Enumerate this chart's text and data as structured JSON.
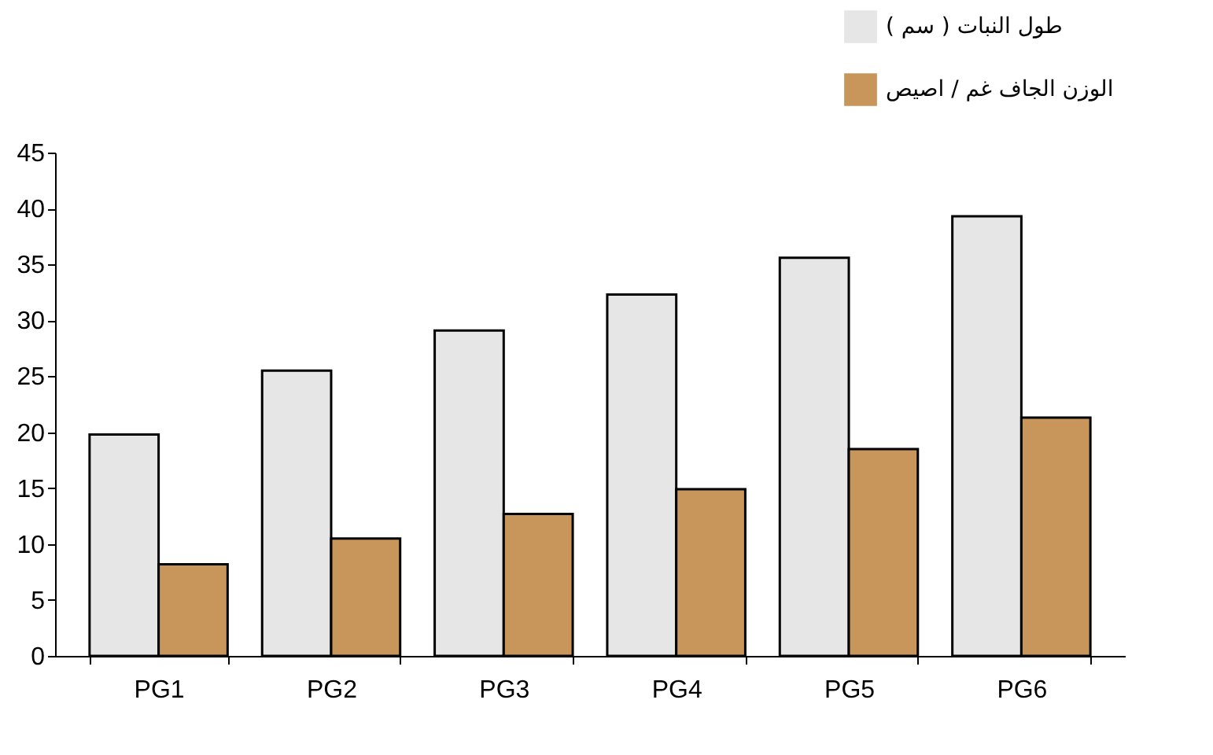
{
  "chart_data": {
    "type": "bar",
    "categories": [
      "PG1",
      "PG2",
      "PG3",
      "PG4",
      "PG5",
      "PG6"
    ],
    "series": [
      {
        "name": "طول النبات ( سم )",
        "color": "#e6e6e6",
        "values": [
          19.8,
          25.5,
          29.1,
          32.3,
          35.6,
          39.3
        ]
      },
      {
        "name": "الوزن الجاف غم / اصيص",
        "color": "#c8955a",
        "values": [
          8.2,
          10.5,
          12.7,
          14.9,
          18.5,
          21.3
        ]
      }
    ],
    "ylim": [
      0,
      45
    ],
    "yticks": [
      0,
      5,
      10,
      15,
      20,
      25,
      30,
      35,
      40,
      45
    ],
    "grid": false,
    "legend": "top right"
  }
}
